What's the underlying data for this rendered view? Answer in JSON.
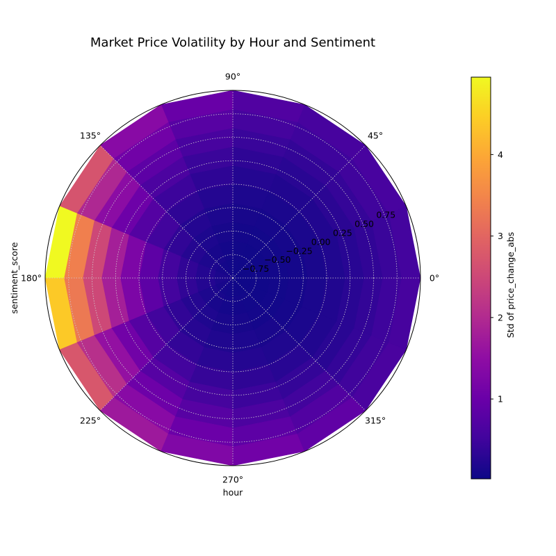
{
  "chart_data": {
    "type": "heatmap",
    "projection": "polar",
    "title": "Market Price Volatility by Hour and Sentiment",
    "xlabel": "hour",
    "ylabel": "sentiment_score",
    "colorbar_label": "Std of price_change_abs",
    "colormap": "plasma",
    "colorbar_range": [
      0.02,
      4.95
    ],
    "colorbar_ticks": [
      1,
      2,
      3,
      4
    ],
    "angle_ticks": [
      "0°",
      "45°",
      "90°",
      "135°",
      "180°",
      "225°",
      "270°",
      "315°"
    ],
    "radial_ticks": [
      "−0.75",
      "−0.50",
      "−0.25",
      "0.00",
      "0.25",
      "0.50",
      "0.75"
    ],
    "radial_range": [
      -1.0,
      1.0
    ],
    "grid": true,
    "hour_sector_start_deg": [
      0,
      22.5,
      45,
      67.5,
      90,
      112.5,
      135,
      157.5,
      180,
      202.5,
      225,
      247.5,
      270,
      292.5,
      315,
      337.5
    ],
    "sentiment_ring_edges": [
      -1.0,
      -0.8,
      -0.6,
      -0.4,
      -0.2,
      0.0,
      0.2,
      0.4,
      0.6,
      0.8,
      1.0
    ],
    "values_by_hour_sector": [
      [
        0.05,
        0.06,
        0.08,
        0.1,
        0.14,
        0.2,
        0.28,
        0.36,
        0.45,
        0.55
      ],
      [
        0.05,
        0.06,
        0.08,
        0.11,
        0.15,
        0.21,
        0.3,
        0.4,
        0.5,
        0.6
      ],
      [
        0.05,
        0.06,
        0.08,
        0.11,
        0.15,
        0.21,
        0.29,
        0.38,
        0.48,
        0.58
      ],
      [
        0.06,
        0.07,
        0.09,
        0.12,
        0.17,
        0.24,
        0.33,
        0.44,
        0.56,
        0.7
      ],
      [
        0.07,
        0.09,
        0.12,
        0.17,
        0.24,
        0.33,
        0.45,
        0.6,
        0.78,
        0.98
      ],
      [
        0.09,
        0.12,
        0.17,
        0.24,
        0.34,
        0.47,
        0.64,
        0.85,
        1.1,
        1.4
      ],
      [
        0.12,
        0.17,
        0.25,
        0.36,
        0.52,
        0.74,
        1.05,
        1.45,
        1.95,
        2.7
      ],
      [
        0.16,
        0.24,
        0.36,
        0.55,
        0.85,
        1.25,
        1.8,
        2.5,
        3.4,
        4.95
      ],
      [
        0.16,
        0.24,
        0.36,
        0.55,
        0.85,
        1.25,
        1.8,
        2.5,
        3.3,
        4.4
      ],
      [
        0.12,
        0.17,
        0.25,
        0.36,
        0.52,
        0.75,
        1.1,
        1.55,
        2.1,
        2.75
      ],
      [
        0.1,
        0.13,
        0.19,
        0.27,
        0.38,
        0.54,
        0.76,
        1.05,
        1.4,
        1.7
      ],
      [
        0.08,
        0.1,
        0.14,
        0.2,
        0.29,
        0.41,
        0.57,
        0.78,
        1.02,
        1.3
      ],
      [
        0.07,
        0.09,
        0.12,
        0.17,
        0.24,
        0.34,
        0.47,
        0.64,
        0.85,
        1.1
      ],
      [
        0.06,
        0.08,
        0.1,
        0.14,
        0.2,
        0.28,
        0.39,
        0.53,
        0.7,
        0.88
      ],
      [
        0.05,
        0.06,
        0.08,
        0.11,
        0.15,
        0.21,
        0.29,
        0.39,
        0.5,
        0.62
      ],
      [
        0.05,
        0.06,
        0.08,
        0.11,
        0.15,
        0.21,
        0.29,
        0.38,
        0.48,
        0.58
      ]
    ]
  }
}
